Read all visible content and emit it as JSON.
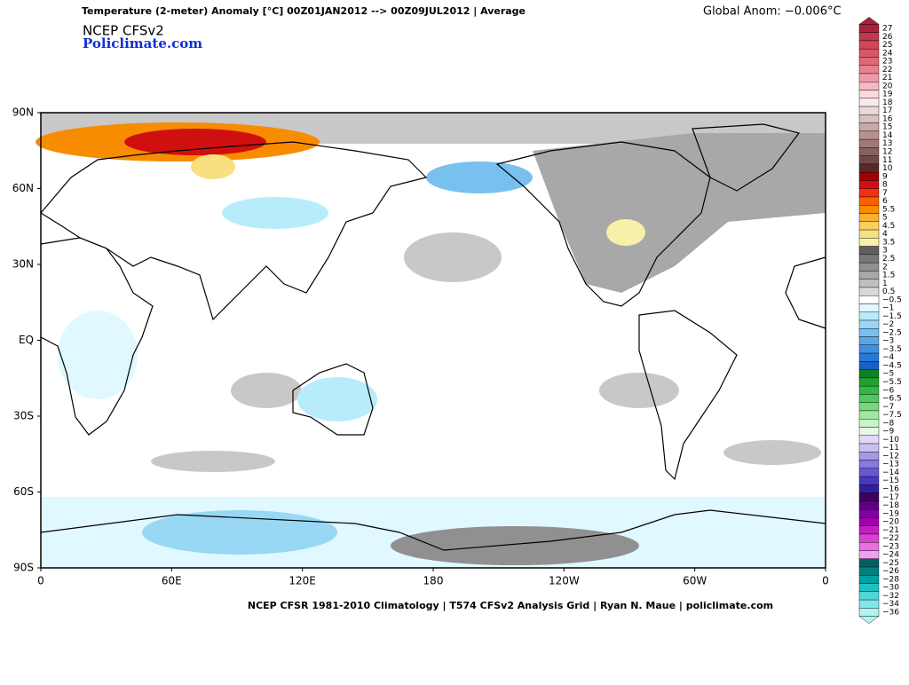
{
  "header": {
    "title": "Temperature (2-meter) Anomaly  [°C] 00Z01JAN2012 --> 00Z09JUL2012 | Average",
    "global_anom": "Global Anom: −0.006°C",
    "model": "NCEP  CFSv2",
    "site": "Policlimate.com"
  },
  "map": {
    "lat_labels": [
      "90N",
      "60N",
      "30N",
      "EQ",
      "30S",
      "60S",
      "90S"
    ],
    "lon_labels": [
      "0",
      "60E",
      "120E",
      "180",
      "120W",
      "60W",
      "0"
    ]
  },
  "footer": {
    "text": "NCEP CFSR 1981-2010 Climatology | T574 CFSv2 Analysis Grid | Ryan N. Maue | policlimate.com"
  },
  "colorbar": {
    "labels": [
      "27",
      "26",
      "25",
      "24",
      "23",
      "22",
      "21",
      "20",
      "19",
      "18",
      "17",
      "16",
      "15",
      "14",
      "13",
      "12",
      "11",
      "10",
      "9",
      "8",
      "7",
      "6",
      "5.5",
      "5",
      "4.5",
      "4",
      "3.5",
      "3",
      "2.5",
      "2",
      "1.5",
      "1",
      "0.5",
      "−0.5",
      "−1",
      "−1.5",
      "−2",
      "−2.5",
      "−3",
      "−3.5",
      "−4",
      "−4.5",
      "−5",
      "−5.5",
      "−6",
      "−6.5",
      "−7",
      "−7.5",
      "−8",
      "−9",
      "−10",
      "−11",
      "−12",
      "−13",
      "−14",
      "−15",
      "−16",
      "−17",
      "−18",
      "−19",
      "−20",
      "−21",
      "−22",
      "−23",
      "−24",
      "−25",
      "−26",
      "−28",
      "−30",
      "−32",
      "−34",
      "−36"
    ],
    "colors": [
      "#a8203a",
      "#c0384a",
      "#d04858",
      "#d85868",
      "#e06878",
      "#e88090",
      "#f098a8",
      "#f8b8c0",
      "#fcd8dc",
      "#f8e8e8",
      "#e8d8d8",
      "#d8c0c0",
      "#c8a8a8",
      "#b89090",
      "#a07878",
      "#886060",
      "#704848",
      "#5a2828",
      "#a00000",
      "#d01010",
      "#f03010",
      "#f86000",
      "#f88c00",
      "#f8b030",
      "#f8d060",
      "#f8e080",
      "#f8f0a8",
      "#606060",
      "#787878",
      "#909090",
      "#a8a8a8",
      "#c0c0c0",
      "#d8d8d8",
      "#ffffff",
      "#e0f8ff",
      "#b8ecfa",
      "#98d8f4",
      "#78c0f0",
      "#58a8e8",
      "#4090e0",
      "#2878d8",
      "#1860c8",
      "#108020",
      "#20a030",
      "#30b840",
      "#50c860",
      "#78d880",
      "#a0e8a0",
      "#c8f4c8",
      "#e8f8e8",
      "#e0d8f8",
      "#c8c0f0",
      "#a898e8",
      "#8878e0",
      "#6858d0",
      "#4838c0",
      "#3020a0",
      "#400060",
      "#600080",
      "#8000a0",
      "#a000b0",
      "#c020c0",
      "#d840d0",
      "#e870e0",
      "#f0a0f0",
      "#006060",
      "#008080",
      "#00a0a0",
      "#20c0c0",
      "#50d8d8",
      "#80e8e8",
      "#b0f4f4"
    ]
  }
}
